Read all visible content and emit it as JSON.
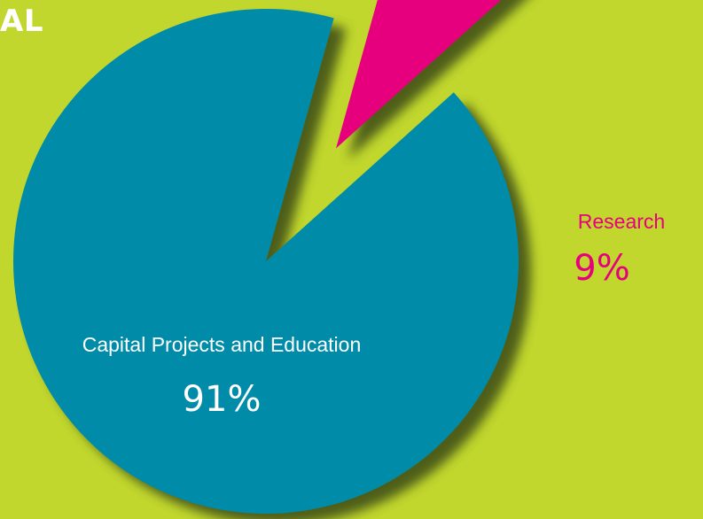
{
  "header": {
    "title_fragment": "AL"
  },
  "colors": {
    "background": "#c1d72e",
    "shadow": "#3a4a14"
  },
  "chart_data": {
    "type": "pie",
    "title": "",
    "exploded": [
      "Research"
    ],
    "slices": [
      {
        "label": "Capital Projects and Education",
        "value": 91,
        "display": "91%",
        "color": "#008ca8",
        "label_color": "#ffffff"
      },
      {
        "label": "Research",
        "value": 9,
        "display": "9%",
        "color": "#e6007e",
        "label_color": "#e6007e"
      }
    ]
  }
}
